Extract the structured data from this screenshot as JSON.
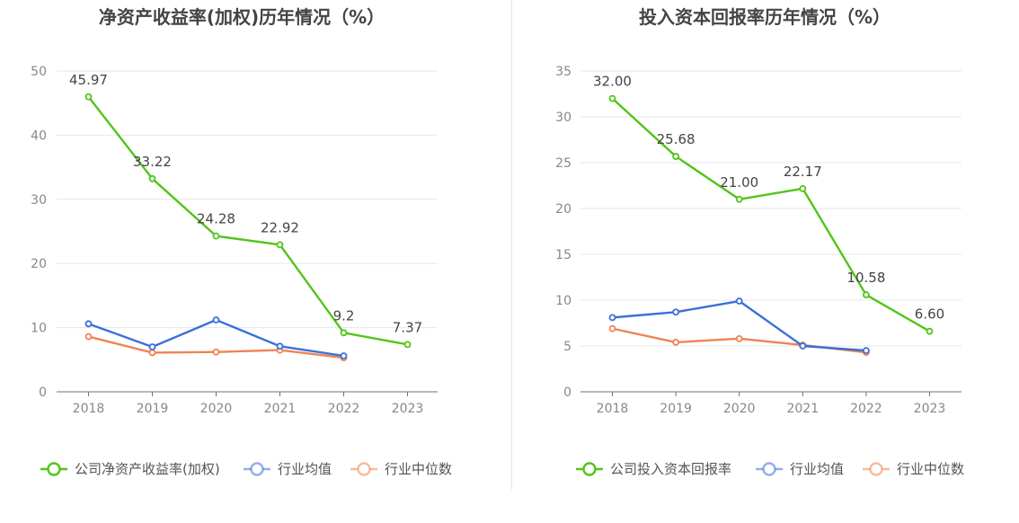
{
  "chart_data": [
    {
      "type": "line",
      "title": "净资产收益率(加权)历年情况（%）",
      "categories": [
        "2018",
        "2019",
        "2020",
        "2021",
        "2022",
        "2023"
      ],
      "ylim": [
        0,
        50
      ],
      "yticks": [
        0,
        10,
        20,
        30,
        40,
        50
      ],
      "grid": true,
      "legend_position": "bottom",
      "series": [
        {
          "name": "公司净资产收益率(加权)",
          "color": "#52c41a",
          "values": [
            45.97,
            33.22,
            24.28,
            22.92,
            9.2,
            7.37
          ],
          "labels": [
            "45.97",
            "33.22",
            "24.28",
            "22.92",
            "9.2",
            "7.37"
          ]
        },
        {
          "name": "行业均值",
          "color": "#3b6fd8",
          "values": [
            10.6,
            7.0,
            11.2,
            7.1,
            5.6,
            null
          ]
        },
        {
          "name": "行业中位数",
          "color": "#ef8354",
          "values": [
            8.6,
            6.1,
            6.2,
            6.5,
            5.3,
            null
          ]
        }
      ]
    },
    {
      "type": "line",
      "title": "投入资本回报率历年情况（%）",
      "categories": [
        "2018",
        "2019",
        "2020",
        "2021",
        "2022",
        "2023"
      ],
      "ylim": [
        0,
        35
      ],
      "yticks": [
        0,
        5,
        10,
        15,
        20,
        25,
        30,
        35
      ],
      "grid": true,
      "legend_position": "bottom",
      "series": [
        {
          "name": "公司投入资本回报率",
          "color": "#52c41a",
          "values": [
            32.0,
            25.68,
            21.0,
            22.17,
            10.58,
            6.6
          ],
          "labels": [
            "32.00",
            "25.68",
            "21.00",
            "22.17",
            "10.58",
            "6.60"
          ]
        },
        {
          "name": "行业均值",
          "color": "#3b6fd8",
          "values": [
            8.1,
            8.7,
            9.9,
            5.0,
            4.5,
            null
          ]
        },
        {
          "name": "行业中位数",
          "color": "#ef8354",
          "values": [
            6.9,
            5.4,
            5.8,
            5.1,
            4.3,
            null
          ]
        }
      ]
    }
  ]
}
